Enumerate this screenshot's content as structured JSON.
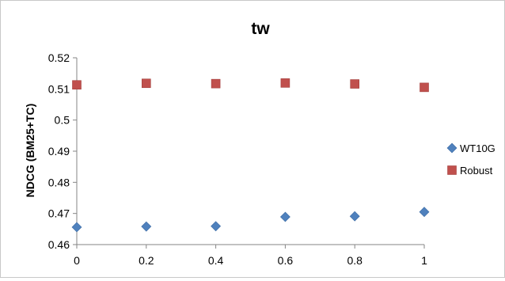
{
  "chart_data": {
    "type": "scatter",
    "title": "tw",
    "xlabel": "",
    "ylabel": "NDCG (BM25+TC)",
    "xlim": [
      0,
      1
    ],
    "ylim": [
      0.46,
      0.52
    ],
    "x_ticks": [
      "0",
      "0.2",
      "0.4",
      "0.6",
      "0.8",
      "1"
    ],
    "y_ticks": [
      "0.46",
      "0.47",
      "0.48",
      "0.49",
      "0.5",
      "0.51",
      "0.52"
    ],
    "grid": false,
    "legend_position": "right",
    "x": [
      0,
      0.2,
      0.4,
      0.6,
      0.8,
      1
    ],
    "series": [
      {
        "name": "WT10G",
        "marker": "diamond",
        "color": "#4f81bd",
        "values": [
          0.4656,
          0.4658,
          0.4659,
          0.4689,
          0.4691,
          0.4705
        ]
      },
      {
        "name": "Robust",
        "marker": "square",
        "color": "#c0504d",
        "values": [
          0.5113,
          0.5118,
          0.5117,
          0.5119,
          0.5116,
          0.5105
        ]
      }
    ]
  }
}
